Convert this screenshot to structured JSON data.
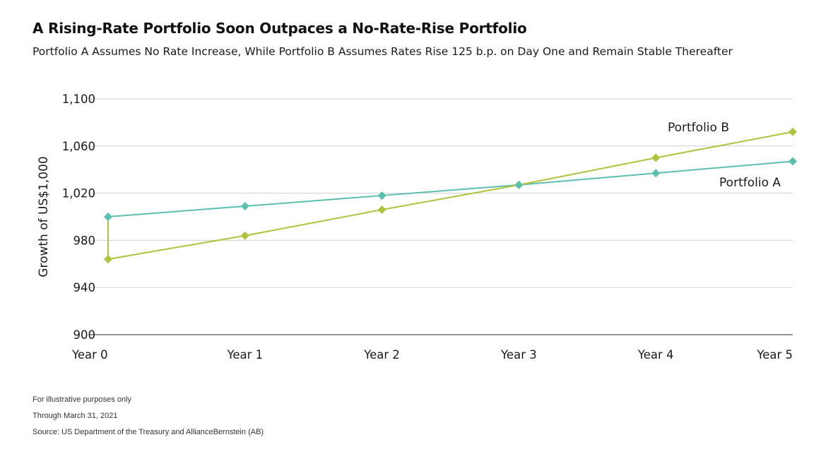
{
  "title": "A Rising-Rate Portfolio Soon Outpaces a No-Rate-Rise Portfolio",
  "subtitle": "Portfolio A Assumes No Rate Increase, While Portfolio B Assumes Rates Rise 125 b.p. on Day One and Remain Stable Thereafter",
  "notes": [
    "For illustrative purposes only",
    "Through March 31, 2021",
    "Source: US Department of the Treasury and AllianceBernstein (AB)"
  ],
  "chart_data": {
    "type": "line",
    "categories": [
      "Year 0",
      "Year 1",
      "Year 2",
      "Year 3",
      "Year 4",
      "Year 5"
    ],
    "ylabel": "Growth of US$1,000",
    "ylim": [
      900,
      1100
    ],
    "yticks": [
      900,
      940,
      980,
      1020,
      1060,
      1100
    ],
    "ytick_labels": [
      "900",
      "940",
      "980",
      "1,020",
      "1,060",
      "1,100"
    ],
    "grid": true,
    "series": [
      {
        "name": "Portfolio A",
        "color": "#5bbfae",
        "values": [
          1000,
          1009,
          1018,
          1027,
          1037,
          1047
        ]
      },
      {
        "name": "Portfolio B",
        "color": "#b2c13d",
        "values": [
          964,
          984,
          1006,
          1027,
          1050,
          1072
        ]
      }
    ]
  }
}
